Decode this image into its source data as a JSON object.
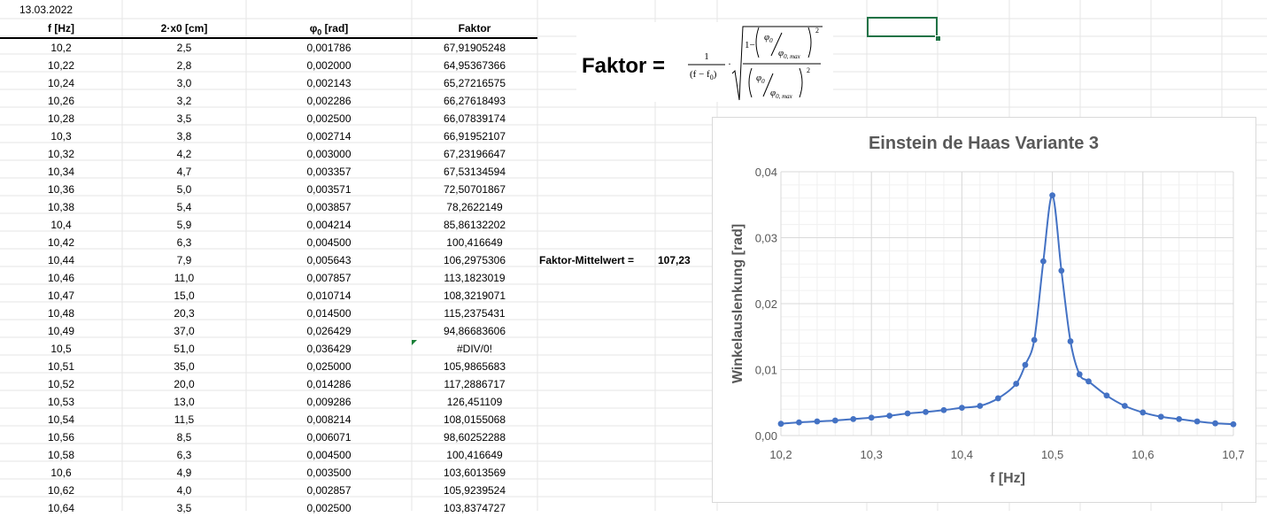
{
  "sheet": {
    "date": "13.03.2022",
    "headers": {
      "f": "f [Hz]",
      "x": "2·x0 [cm]",
      "phi_sym": "φ",
      "phi_sub": "0",
      "phi_unit": " [rad]",
      "faktor": "Faktor"
    },
    "rows": [
      [
        "10,2",
        "2,5",
        "0,001786",
        "67,91905248"
      ],
      [
        "10,22",
        "2,8",
        "0,002000",
        "64,95367366"
      ],
      [
        "10,24",
        "3,0",
        "0,002143",
        "65,27216575"
      ],
      [
        "10,26",
        "3,2",
        "0,002286",
        "66,27618493"
      ],
      [
        "10,28",
        "3,5",
        "0,002500",
        "66,07839174"
      ],
      [
        "10,3",
        "3,8",
        "0,002714",
        "66,91952107"
      ],
      [
        "10,32",
        "4,2",
        "0,003000",
        "67,23196647"
      ],
      [
        "10,34",
        "4,7",
        "0,003357",
        "67,53134594"
      ],
      [
        "10,36",
        "5,0",
        "0,003571",
        "72,50701867"
      ],
      [
        "10,38",
        "5,4",
        "0,003857",
        "78,2622149"
      ],
      [
        "10,4",
        "5,9",
        "0,004214",
        "85,86132202"
      ],
      [
        "10,42",
        "6,3",
        "0,004500",
        "100,416649"
      ],
      [
        "10,44",
        "7,9",
        "0,005643",
        "106,2975306"
      ],
      [
        "10,46",
        "11,0",
        "0,007857",
        "113,1823019"
      ],
      [
        "10,47",
        "15,0",
        "0,010714",
        "108,3219071"
      ],
      [
        "10,48",
        "20,3",
        "0,014500",
        "115,2375431"
      ],
      [
        "10,49",
        "37,0",
        "0,026429",
        "94,86683606"
      ],
      [
        "10,5",
        "51,0",
        "0,036429",
        "#DIV/0!"
      ],
      [
        "10,51",
        "35,0",
        "0,025000",
        "105,9865683"
      ],
      [
        "10,52",
        "20,0",
        "0,014286",
        "117,2886717"
      ],
      [
        "10,53",
        "13,0",
        "0,009286",
        "126,451109"
      ],
      [
        "10,54",
        "11,5",
        "0,008214",
        "108,0155068"
      ],
      [
        "10,56",
        "8,5",
        "0,006071",
        "98,60252288"
      ],
      [
        "10,58",
        "6,3",
        "0,004500",
        "100,416649"
      ],
      [
        "10,6",
        "4,9",
        "0,003500",
        "103,6013569"
      ],
      [
        "10,62",
        "4,0",
        "0,002857",
        "105,9239524"
      ],
      [
        "10,64",
        "3,5",
        "0,002500",
        "103,8374727"
      ]
    ],
    "mittelwert_label": "Faktor-Mittelwert =",
    "mittelwert_value": "107,23"
  },
  "formula": {
    "lhs": "Faktor =",
    "one": "1",
    "denom": "(f − f",
    "denom_sub": "0",
    "denom_close": ")",
    "dot": "·",
    "one_minus": "1−",
    "phi": "φ",
    "sub0": "0",
    "sub0max": "0, max",
    "exp": "2"
  },
  "colors": {
    "series": "#4472C4",
    "grid_line": "#e6e6e6",
    "select": "#217346",
    "error_marker": "#1a7f37"
  },
  "chart_data": {
    "type": "scatter",
    "title": "Einstein de Haas Variante 3",
    "xlabel": "f [Hz]",
    "ylabel": "Winkelauslenkung [rad]",
    "xlim": [
      10.2,
      10.7
    ],
    "ylim": [
      0,
      0.04
    ],
    "xticks": [
      "10,2",
      "10,3",
      "10,4",
      "10,5",
      "10,6",
      "10,7"
    ],
    "yticks": [
      "0,00",
      "0,01",
      "0,02",
      "0,03",
      "0,04"
    ],
    "grid": true,
    "legend": "none",
    "series": [
      {
        "x": [
          10.2,
          10.22,
          10.24,
          10.26,
          10.28,
          10.3,
          10.32,
          10.34,
          10.36,
          10.38,
          10.4,
          10.42,
          10.44,
          10.46,
          10.47,
          10.48,
          10.49,
          10.5,
          10.51,
          10.52,
          10.53,
          10.54,
          10.56,
          10.58,
          10.6,
          10.62,
          10.64,
          10.66,
          10.68,
          10.7
        ],
        "y": [
          0.001786,
          0.002,
          0.002143,
          0.002286,
          0.0025,
          0.002714,
          0.003,
          0.003357,
          0.003571,
          0.003857,
          0.004214,
          0.0045,
          0.005643,
          0.007857,
          0.010714,
          0.0145,
          0.026429,
          0.036429,
          0.025,
          0.014286,
          0.009286,
          0.008214,
          0.006071,
          0.0045,
          0.0035,
          0.002857,
          0.0025,
          0.002143,
          0.001857,
          0.001714
        ]
      }
    ]
  }
}
